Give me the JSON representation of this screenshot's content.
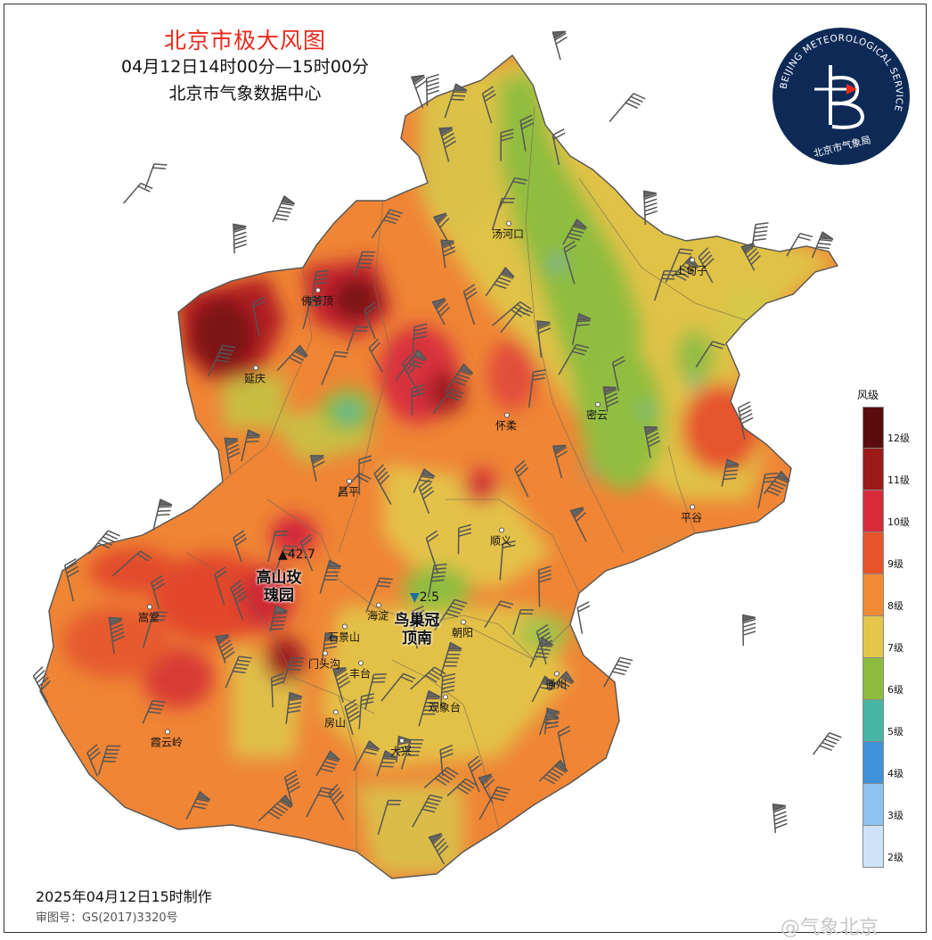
{
  "header": {
    "title": "北京市极大风图",
    "time_range": "04月12日14时00分—15时00分",
    "agency": "北京市气象数据中心"
  },
  "logo": {
    "ring_text": "BEIJING METEOROLOGICAL SERVICE",
    "inner_text": "北京市气象局",
    "bg_color": "#0d2a57"
  },
  "legend": {
    "title": "风级",
    "levels": [
      {
        "label": "12级",
        "color": "#5b0d0d"
      },
      {
        "label": "11级",
        "color": "#9c1a1a"
      },
      {
        "label": "10级",
        "color": "#d62a38"
      },
      {
        "label": "9级",
        "color": "#e8542a"
      },
      {
        "label": "8级",
        "color": "#f08a35"
      },
      {
        "label": "7级",
        "color": "#e4c64a"
      },
      {
        "label": "6级",
        "color": "#8cbc3e"
      },
      {
        "label": "5级",
        "color": "#47b5a3"
      },
      {
        "label": "4级",
        "color": "#3f91d9"
      },
      {
        "label": "3级",
        "color": "#8fc3f0"
      },
      {
        "label": "2级",
        "color": "#cfe3f8"
      }
    ]
  },
  "places": [
    {
      "name": "汤河口"
    },
    {
      "name": "上甸子"
    },
    {
      "name": "佛爷顶"
    },
    {
      "name": "延庆"
    },
    {
      "name": "怀柔"
    },
    {
      "name": "密云"
    },
    {
      "name": "昌平"
    },
    {
      "name": "平谷"
    },
    {
      "name": "顺义"
    },
    {
      "name": "海淀"
    },
    {
      "name": "朝阳"
    },
    {
      "name": "嵩堂"
    },
    {
      "name": "石景山"
    },
    {
      "name": "门头沟"
    },
    {
      "name": "丰台"
    },
    {
      "name": "通州"
    },
    {
      "name": "观象台"
    },
    {
      "name": "房山"
    },
    {
      "name": "大兴"
    },
    {
      "name": "霞云岭"
    }
  ],
  "extremes": {
    "max": {
      "value": "42.7",
      "station": "高山玫\n瑰园",
      "symbol": "▲"
    },
    "min": {
      "value": "2.5",
      "station": "鸟巢冠\n顶南",
      "symbol": "▼"
    }
  },
  "footer": {
    "made_at": "2025年04月12日15时制作",
    "review_no": "审图号：GS(2017)3320号",
    "watermark": "@气象北京"
  }
}
